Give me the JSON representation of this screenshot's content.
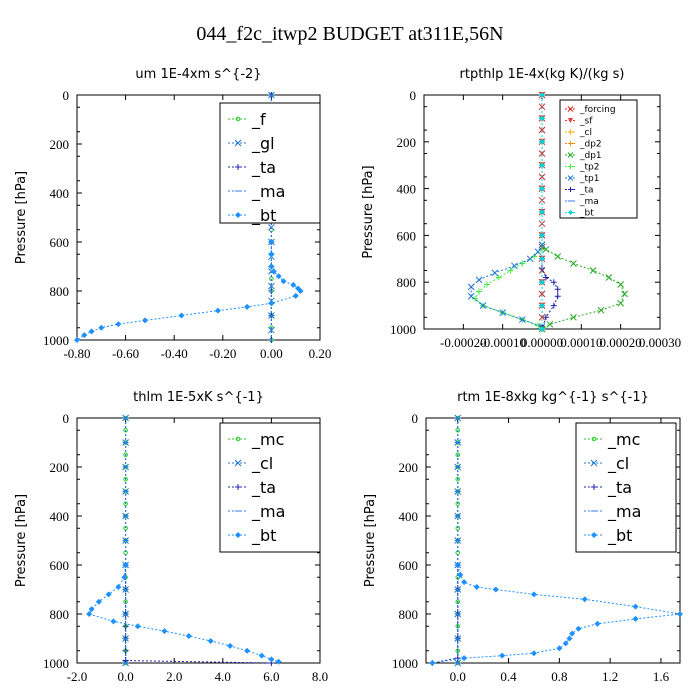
{
  "title": "044_f2c_itwp2  BUDGET at311E,56N",
  "chart_data": [
    {
      "type": "line",
      "title": "um   1E-4xm s^{-2}",
      "ylabel": "Pressure [hPa]",
      "xlim": [
        -0.8,
        0.2
      ],
      "ylim": [
        1000,
        0
      ],
      "xticks": [
        "-0.80",
        "-0.60",
        "-0.40",
        "-0.20",
        "0.00",
        "0.20"
      ],
      "xtick_values": [
        -0.8,
        -0.6,
        -0.4,
        -0.2,
        0.0,
        0.2
      ],
      "yticks": [
        "0",
        "200",
        "400",
        "600",
        "800",
        "1000"
      ],
      "legend_style": "big",
      "series": [
        {
          "name": "_f",
          "color": "#22cc22",
          "marker": "circle",
          "x": [
            0,
            0,
            0,
            0,
            0,
            0,
            0,
            0,
            0,
            0,
            0,
            0,
            0,
            0,
            0,
            0,
            0,
            0,
            0,
            0,
            0
          ],
          "y": [
            0,
            50,
            100,
            150,
            200,
            250,
            300,
            350,
            400,
            450,
            500,
            550,
            600,
            650,
            700,
            750,
            800,
            850,
            900,
            950,
            1000
          ]
        },
        {
          "name": "_gl",
          "color": "#1f77d4",
          "marker": "cross",
          "x": [
            0,
            0,
            0,
            0,
            0,
            0,
            0,
            0,
            0,
            0,
            0,
            0,
            0,
            0,
            0,
            0,
            0
          ],
          "y": [
            0,
            60,
            120,
            180,
            240,
            300,
            360,
            420,
            480,
            540,
            600,
            660,
            720,
            780,
            840,
            900,
            960
          ]
        },
        {
          "name": "_ta",
          "color": "#2222aa",
          "marker": "plus",
          "x": [
            0,
            0,
            0,
            0,
            0,
            0,
            0,
            0,
            0,
            0,
            0
          ],
          "y": [
            0,
            100,
            200,
            300,
            400,
            500,
            600,
            700,
            800,
            900,
            1000
          ]
        },
        {
          "name": "_ma",
          "color": "#3377ee",
          "marker": "dash",
          "x": [
            0,
            0,
            0,
            0,
            0,
            0,
            0,
            0,
            0,
            0,
            0
          ],
          "y": [
            0,
            100,
            200,
            300,
            400,
            500,
            600,
            700,
            800,
            900,
            1000
          ]
        },
        {
          "name": "_bt",
          "color": "#1e90ff",
          "marker": "star",
          "x": [
            0.0,
            0.0,
            0.0,
            0.01,
            0.03,
            0.05,
            0.09,
            0.11,
            0.12,
            0.1,
            0.0,
            -0.1,
            -0.22,
            -0.37,
            -0.52,
            -0.63,
            -0.7,
            -0.74,
            -0.77,
            -0.8
          ],
          "y": [
            600,
            650,
            700,
            720,
            740,
            760,
            775,
            790,
            800,
            820,
            850,
            865,
            880,
            900,
            920,
            935,
            950,
            965,
            980,
            1000
          ]
        }
      ]
    },
    {
      "type": "line",
      "title": "rtpthlp   1E-4x(kg K)/(kg s)",
      "ylabel": "Pressure [hPa]",
      "xlim": [
        -0.0003,
        0.0003
      ],
      "ylim": [
        1000,
        0
      ],
      "xticks": [
        "-0.00020",
        "-0.00010",
        "0.00000",
        "0.00010",
        "0.00020",
        "0.00030"
      ],
      "xtick_values": [
        -0.0002,
        -0.0001,
        0.0,
        0.0001,
        0.0002,
        0.0003
      ],
      "yticks": [
        "0",
        "200",
        "400",
        "600",
        "800",
        "1000"
      ],
      "legend_style": "small",
      "series": [
        {
          "name": "_forcing",
          "color": "#dd2222",
          "marker": "cross",
          "x": [
            0,
            0,
            0,
            0,
            0,
            0,
            0,
            0,
            0,
            0,
            0,
            0,
            0,
            0,
            0,
            0,
            0,
            0,
            0,
            0,
            0
          ],
          "y": [
            0,
            50,
            100,
            150,
            200,
            250,
            300,
            350,
            400,
            450,
            500,
            550,
            600,
            650,
            700,
            750,
            800,
            850,
            900,
            950,
            1000
          ]
        },
        {
          "name": "_sf",
          "color": "#ff3333",
          "marker": "down",
          "x": [
            0,
            0,
            0,
            0,
            0,
            0,
            0,
            0,
            0,
            0,
            0
          ],
          "y": [
            0,
            100,
            200,
            300,
            400,
            500,
            600,
            700,
            800,
            900,
            1000
          ]
        },
        {
          "name": "_cl",
          "color": "#ffaa00",
          "marker": "plus",
          "x": [
            0,
            0,
            0,
            0,
            0,
            0,
            0,
            0,
            0,
            0,
            0
          ],
          "y": [
            0,
            100,
            200,
            300,
            400,
            500,
            600,
            700,
            800,
            900,
            1000
          ]
        },
        {
          "name": "_dp2",
          "color": "#ff8c00",
          "marker": "plus",
          "x": [
            0,
            0,
            0,
            0,
            0,
            0,
            0,
            0,
            0,
            0,
            0
          ],
          "y": [
            0,
            100,
            200,
            300,
            400,
            500,
            600,
            700,
            800,
            900,
            1000
          ]
        },
        {
          "name": "_dp1",
          "color": "#22aa22",
          "marker": "cross",
          "x": [
            0.0,
            1e-05,
            4e-05,
            8e-05,
            0.00013,
            0.00017,
            0.0002,
            0.00021,
            0.0002,
            0.00015,
            8e-05,
            2e-05,
            0.0
          ],
          "y": [
            640,
            660,
            690,
            720,
            750,
            780,
            810,
            850,
            890,
            920,
            950,
            980,
            1000
          ]
        },
        {
          "name": "_tp2",
          "color": "#44ee44",
          "marker": "plus",
          "x": [
            0.0,
            -2e-05,
            -5e-05,
            -8e-05,
            -0.00011,
            -0.00014,
            -0.00016,
            -0.00017,
            -0.00015,
            -0.0001,
            -5e-05,
            -1e-05,
            0.0
          ],
          "y": [
            660,
            690,
            720,
            750,
            780,
            810,
            840,
            870,
            900,
            930,
            960,
            985,
            1000
          ]
        },
        {
          "name": "_tp1",
          "color": "#1f77d4",
          "marker": "cross",
          "x": [
            0.0,
            -1e-05,
            -3e-05,
            -7e-05,
            -0.00012,
            -0.00016,
            -0.00018,
            -0.00018,
            -0.00015,
            -0.0001,
            -5e-05,
            0.0
          ],
          "y": [
            640,
            670,
            700,
            730,
            760,
            790,
            820,
            860,
            900,
            930,
            960,
            990
          ]
        },
        {
          "name": "_ta",
          "color": "#2222aa",
          "marker": "plus",
          "x": [
            0.0,
            0.0,
            1e-05,
            3e-05,
            4e-05,
            4e-05,
            3e-05,
            1e-05,
            0.0
          ],
          "y": [
            700,
            740,
            780,
            800,
            830,
            860,
            900,
            950,
            1000
          ]
        },
        {
          "name": "_ma",
          "color": "#3377ee",
          "marker": "dash",
          "x": [
            0,
            0,
            0,
            0,
            0,
            0,
            0,
            0,
            0,
            0,
            0
          ],
          "y": [
            0,
            100,
            200,
            300,
            400,
            500,
            600,
            700,
            800,
            900,
            1000
          ]
        },
        {
          "name": "_bt",
          "color": "#00d4d4",
          "marker": "star",
          "x": [
            0,
            0,
            0,
            0,
            0,
            0,
            0,
            0,
            0,
            0,
            0
          ],
          "y": [
            0,
            100,
            200,
            300,
            400,
            500,
            600,
            700,
            800,
            900,
            1000
          ]
        }
      ]
    },
    {
      "type": "line",
      "title": "thlm   1E-5xK s^{-1}",
      "ylabel": "Pressure [hPa]",
      "xlim": [
        -2.0,
        8.0
      ],
      "ylim": [
        1000,
        0
      ],
      "xticks": [
        "-2.0",
        "0.0",
        "2.0",
        "4.0",
        "6.0",
        "8.0"
      ],
      "xtick_values": [
        -2,
        0,
        2,
        4,
        6,
        8
      ],
      "yticks": [
        "0",
        "200",
        "400",
        "600",
        "800",
        "1000"
      ],
      "legend_style": "big",
      "series": [
        {
          "name": "_mc",
          "color": "#22cc22",
          "marker": "circle",
          "x": [
            0,
            0,
            0,
            0,
            0,
            0,
            0,
            0,
            0,
            0,
            0,
            0,
            0,
            0,
            0,
            0,
            0,
            0,
            0,
            0,
            0
          ],
          "y": [
            0,
            50,
            100,
            150,
            200,
            250,
            300,
            350,
            400,
            450,
            500,
            550,
            600,
            650,
            700,
            750,
            800,
            850,
            900,
            950,
            1000
          ]
        },
        {
          "name": "_cl",
          "color": "#1f77d4",
          "marker": "cross",
          "x": [
            0,
            0,
            0,
            0,
            0,
            0,
            0,
            0,
            0,
            0,
            0
          ],
          "y": [
            0,
            100,
            200,
            300,
            400,
            500,
            600,
            700,
            800,
            900,
            1000
          ]
        },
        {
          "name": "_ta",
          "color": "#2222aa",
          "marker": "plus",
          "x": [
            0.0,
            0.0,
            0.0,
            0.0,
            0.0,
            0.0,
            0.0,
            6.0
          ],
          "y": [
            600,
            700,
            800,
            850,
            900,
            950,
            990,
            1000
          ]
        },
        {
          "name": "_ma",
          "color": "#3377ee",
          "marker": "dash",
          "x": [
            0,
            0,
            0,
            0,
            0,
            0,
            0,
            0,
            0,
            0,
            0
          ],
          "y": [
            0,
            100,
            200,
            300,
            400,
            500,
            600,
            700,
            800,
            900,
            1000
          ]
        },
        {
          "name": "_bt",
          "color": "#1e90ff",
          "marker": "star",
          "x": [
            0.0,
            -0.05,
            -0.3,
            -0.7,
            -1.1,
            -1.4,
            -1.5,
            -0.5,
            0.5,
            1.6,
            2.6,
            3.5,
            4.3,
            5.0,
            5.6,
            6.0,
            6.3
          ],
          "y": [
            600,
            650,
            690,
            720,
            750,
            780,
            800,
            830,
            850,
            870,
            890,
            910,
            930,
            950,
            970,
            985,
            995
          ]
        }
      ]
    },
    {
      "type": "line",
      "title": "rtm   1E-8xkg kg^{-1} s^{-1}",
      "ylabel": "Pressure [hPa]",
      "xlim": [
        -0.25,
        1.75
      ],
      "ylim": [
        1000,
        0
      ],
      "xticks": [
        "0.0",
        "0.4",
        "0.8",
        "1.2",
        "1.6"
      ],
      "xtick_values": [
        0.0,
        0.4,
        0.8,
        1.2,
        1.6
      ],
      "yticks": [
        "0",
        "200",
        "400",
        "600",
        "800",
        "1000"
      ],
      "legend_style": "big",
      "series": [
        {
          "name": "_mc",
          "color": "#22cc22",
          "marker": "circle",
          "x": [
            0,
            0,
            0,
            0,
            0,
            0,
            0,
            0,
            0,
            0,
            0,
            0,
            0,
            0,
            0,
            0,
            0,
            0,
            0,
            0,
            0
          ],
          "y": [
            0,
            50,
            100,
            150,
            200,
            250,
            300,
            350,
            400,
            450,
            500,
            550,
            600,
            650,
            700,
            750,
            800,
            850,
            900,
            950,
            1000
          ]
        },
        {
          "name": "_cl",
          "color": "#1f77d4",
          "marker": "cross",
          "x": [
            0,
            0,
            0,
            0,
            0,
            0,
            0,
            0,
            0,
            0,
            0
          ],
          "y": [
            0,
            100,
            200,
            300,
            400,
            500,
            600,
            700,
            800,
            900,
            1000
          ]
        },
        {
          "name": "_ta",
          "color": "#2222aa",
          "marker": "plus",
          "x": [
            0.0,
            0.0,
            0.0,
            0.0,
            0.0,
            -0.2
          ],
          "y": [
            600,
            700,
            800,
            900,
            980,
            1000
          ]
        },
        {
          "name": "_ma",
          "color": "#3377ee",
          "marker": "dash",
          "x": [
            0,
            0,
            0,
            0,
            0,
            0,
            0,
            0,
            0,
            0,
            0
          ],
          "y": [
            0,
            100,
            200,
            300,
            400,
            500,
            600,
            700,
            800,
            900,
            1000
          ]
        },
        {
          "name": "_bt",
          "color": "#1e90ff",
          "marker": "star",
          "x": [
            0.0,
            0.02,
            0.05,
            0.15,
            0.3,
            0.6,
            1.0,
            1.4,
            1.75,
            1.4,
            1.1,
            0.95,
            0.9,
            0.88,
            0.85,
            0.8,
            0.6,
            0.35,
            0.05,
            -0.2
          ],
          "y": [
            600,
            640,
            670,
            690,
            700,
            720,
            740,
            770,
            800,
            820,
            840,
            860,
            880,
            900,
            920,
            940,
            960,
            970,
            980,
            1000
          ]
        }
      ]
    }
  ]
}
